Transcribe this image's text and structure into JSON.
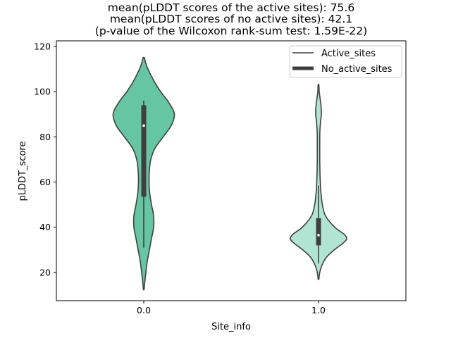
{
  "chart_data": {
    "type": "violin",
    "title_lines": [
      "mean(pLDDT scores of the active sites): 75.6",
      "mean(pLDDT scores of no active sites): 42.1",
      "(p-value of the Wilcoxon rank-sum test: 1.59E-22)"
    ],
    "xlabel": "Site_info",
    "ylabel": "pLDDT_score",
    "categories": [
      "0.0",
      "1.0"
    ],
    "yticks": [
      20,
      40,
      60,
      80,
      100,
      120
    ],
    "ylim": [
      7.5,
      122.5
    ],
    "legend": {
      "placement": "upper right",
      "entries": [
        {
          "label": "Active_sites",
          "style": "thin"
        },
        {
          "label": "No_active_sites",
          "style": "thick"
        }
      ]
    },
    "series": [
      {
        "name": "0.0",
        "color": "#66c5a3",
        "box": {
          "median": 85,
          "q1": 53.5,
          "q3": 94,
          "whisker_low": 31,
          "whisker_high": 96
        },
        "density": [
          [
            115,
            0.02
          ],
          [
            113,
            0.05
          ],
          [
            110,
            0.12
          ],
          [
            105,
            0.28
          ],
          [
            100,
            0.48
          ],
          [
            95,
            0.72
          ],
          [
            90,
            0.87
          ],
          [
            85,
            0.78
          ],
          [
            80,
            0.55
          ],
          [
            75,
            0.32
          ],
          [
            70,
            0.2
          ],
          [
            65,
            0.16
          ],
          [
            60,
            0.15
          ],
          [
            55,
            0.17
          ],
          [
            50,
            0.22
          ],
          [
            45,
            0.28
          ],
          [
            40,
            0.28
          ],
          [
            35,
            0.22
          ],
          [
            30,
            0.16
          ],
          [
            25,
            0.1
          ],
          [
            20,
            0.06
          ],
          [
            15,
            0.025
          ],
          [
            12.5,
            0.01
          ]
        ]
      },
      {
        "name": "1.0",
        "color": "#b2e4d4",
        "box": {
          "median": 36.5,
          "q1": 32,
          "q3": 44,
          "whisker_low": 24,
          "whisker_high": 58.5
        },
        "density": [
          [
            103,
            0.01
          ],
          [
            100,
            0.02
          ],
          [
            97,
            0.045
          ],
          [
            93,
            0.075
          ],
          [
            90,
            0.08
          ],
          [
            87,
            0.06
          ],
          [
            83,
            0.04
          ],
          [
            80,
            0.035
          ],
          [
            75,
            0.035
          ],
          [
            70,
            0.035
          ],
          [
            65,
            0.04
          ],
          [
            60,
            0.05
          ],
          [
            55,
            0.07
          ],
          [
            50,
            0.11
          ],
          [
            45,
            0.2
          ],
          [
            40,
            0.46
          ],
          [
            37,
            0.72
          ],
          [
            35,
            0.8
          ],
          [
            33,
            0.7
          ],
          [
            30,
            0.45
          ],
          [
            27,
            0.24
          ],
          [
            24,
            0.12
          ],
          [
            21,
            0.05
          ],
          [
            18.5,
            0.02
          ],
          [
            17,
            0.01
          ]
        ]
      }
    ]
  }
}
